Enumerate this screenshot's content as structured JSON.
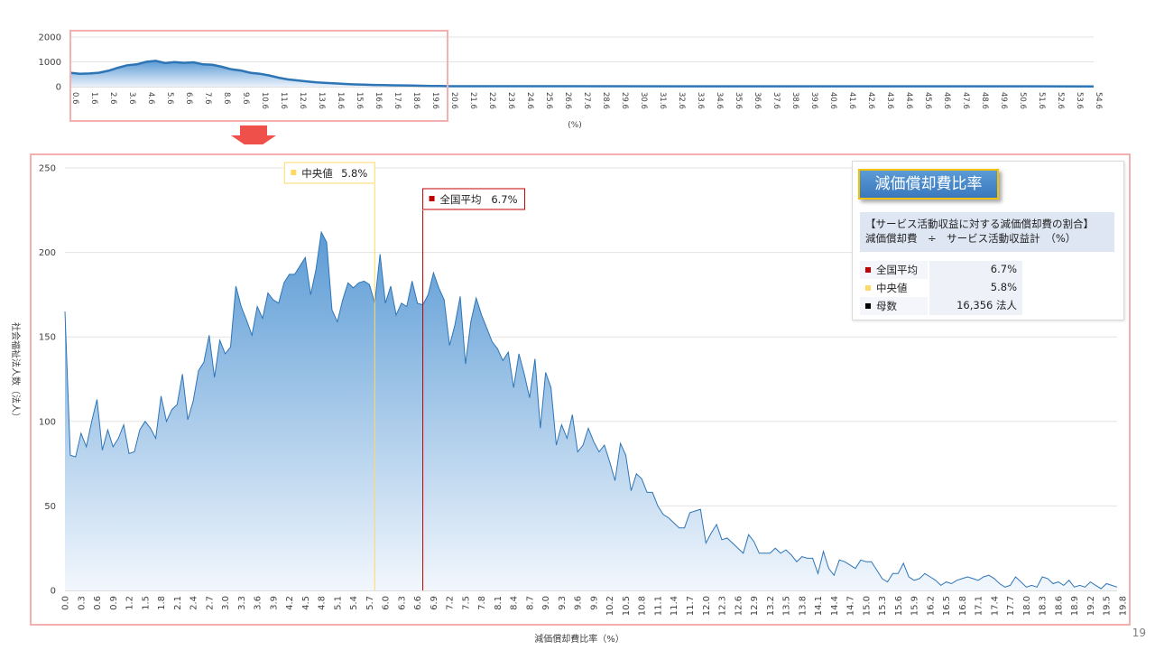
{
  "page_number": "19",
  "colors": {
    "area_top": "#5b9bd5",
    "line": "#2e75b6",
    "mean": "#c00000",
    "median": "#ffd966",
    "highlight_border": "#f4b0b0",
    "arrow": "#f0504a"
  },
  "info": {
    "title": "減価償却費比率",
    "desc_line1": "【サービス活動収益に対する減価償却費の割合】",
    "desc_line2": "減価償却費　÷　サービス活動収益計　（%）",
    "rows": [
      {
        "label": "全国平均",
        "value": "6.7%",
        "color": "#c00000"
      },
      {
        "label": "中央値",
        "value": "5.8%",
        "color": "#ffd966"
      },
      {
        "label": "母数",
        "value": "16,356 法人",
        "color": "#000000"
      }
    ]
  },
  "chart_data": [
    {
      "type": "area",
      "x_unit": "(%)",
      "ylim": [
        0,
        2000
      ],
      "y_ticks": [
        "0",
        "1000",
        "2000"
      ],
      "x_tick_labels": [
        "0.6",
        "1.6",
        "2.6",
        "3.6",
        "4.6",
        "5.6",
        "6.6",
        "7.6",
        "8.6",
        "9.6",
        "10.6",
        "11.6",
        "12.6",
        "13.6",
        "14.6",
        "15.6",
        "16.6",
        "17.6",
        "18.6",
        "19.6",
        "20.6",
        "21.6",
        "22.6",
        "23.6",
        "24.6",
        "25.6",
        "26.6",
        "27.6",
        "28.6",
        "29.6",
        "30.6",
        "31.6",
        "32.6",
        "33.6",
        "34.6",
        "35.6",
        "36.6",
        "37.6",
        "38.6",
        "39.6",
        "40.6",
        "41.6",
        "42.6",
        "43.6",
        "44.6",
        "45.6",
        "46.6",
        "47.6",
        "48.6",
        "49.6",
        "50.6",
        "51.6",
        "52.6",
        "53.6",
        "54.6"
      ],
      "x": [
        0.6,
        1.1,
        1.6,
        2.1,
        2.6,
        3.1,
        3.6,
        4.1,
        4.6,
        5.1,
        5.6,
        6.1,
        6.6,
        7.1,
        7.6,
        8.1,
        8.6,
        9.1,
        9.6,
        10.1,
        10.6,
        11.1,
        11.6,
        12.1,
        12.6,
        13.1,
        13.6,
        14.1,
        14.6,
        15.1,
        15.6,
        16.1,
        16.6,
        17.1,
        17.6,
        18.1,
        18.6,
        19.1,
        19.6,
        20.1,
        20.6,
        54.6
      ],
      "values": [
        560,
        520,
        530,
        560,
        640,
        760,
        860,
        900,
        1000,
        1040,
        950,
        990,
        960,
        980,
        900,
        880,
        800,
        700,
        650,
        560,
        520,
        450,
        360,
        290,
        250,
        210,
        170,
        150,
        130,
        110,
        90,
        80,
        70,
        60,
        55,
        50,
        45,
        38,
        30,
        25,
        20,
        10
      ]
    },
    {
      "type": "area",
      "ylabel": "社会福祉法人数（法人）",
      "xlabel": "減価償却費比率（%）",
      "ylim": [
        0,
        250
      ],
      "y_ticks": [
        "0",
        "50",
        "100",
        "150",
        "200",
        "250"
      ],
      "x_tick_labels": [
        "0.0",
        "0.3",
        "0.6",
        "0.9",
        "1.2",
        "1.5",
        "1.8",
        "2.1",
        "2.4",
        "2.7",
        "3.0",
        "3.3",
        "3.6",
        "3.9",
        "4.2",
        "4.5",
        "4.8",
        "5.1",
        "5.4",
        "5.7",
        "6.0",
        "6.3",
        "6.6",
        "6.9",
        "7.2",
        "7.5",
        "7.8",
        "8.1",
        "8.4",
        "8.7",
        "9.0",
        "9.3",
        "9.6",
        "9.9",
        "10.2",
        "10.5",
        "10.8",
        "11.1",
        "11.4",
        "11.7",
        "12.0",
        "12.3",
        "12.6",
        "12.9",
        "13.2",
        "13.5",
        "13.8",
        "14.1",
        "14.4",
        "14.7",
        "15.0",
        "15.3",
        "15.6",
        "15.9",
        "16.2",
        "16.5",
        "16.8",
        "17.1",
        "17.4",
        "17.7",
        "18.0",
        "18.3",
        "18.6",
        "18.9",
        "19.2",
        "19.5",
        "19.8"
      ],
      "x_start": 0.0,
      "x_step": 0.1,
      "values": [
        165,
        80,
        79,
        93,
        85,
        100,
        113,
        83,
        95,
        85,
        90,
        98,
        81,
        82,
        95,
        100,
        96,
        90,
        115,
        100,
        107,
        110,
        128,
        101,
        112,
        130,
        135,
        151,
        126,
        148,
        140,
        144,
        180,
        168,
        160,
        151,
        168,
        161,
        176,
        172,
        170,
        182,
        187,
        187,
        192,
        197,
        175,
        190,
        212,
        206,
        166,
        159,
        172,
        182,
        179,
        182,
        183,
        181,
        170,
        199,
        170,
        180,
        163,
        170,
        168,
        183,
        170,
        169,
        175,
        188,
        179,
        172,
        145,
        157,
        174,
        134,
        159,
        173,
        163,
        155,
        147,
        143,
        136,
        141,
        120,
        140,
        128,
        114,
        137,
        96,
        129,
        120,
        86,
        98,
        90,
        104,
        82,
        86,
        96,
        88,
        82,
        86,
        76,
        65,
        87,
        80,
        59,
        69,
        66,
        58,
        58,
        50,
        45,
        43,
        40,
        37,
        37,
        46,
        47,
        48,
        28,
        34,
        39,
        30,
        31,
        28,
        25,
        22,
        33,
        29,
        22,
        22,
        22,
        25,
        22,
        24,
        21,
        17,
        20,
        19,
        19,
        10,
        23,
        13,
        9,
        18,
        17,
        15,
        13,
        18,
        17,
        17,
        12,
        7,
        5,
        10,
        10,
        16,
        8,
        6,
        7,
        10,
        8,
        6,
        3,
        5,
        4,
        6,
        7,
        8,
        7,
        6,
        8,
        9,
        7,
        4,
        2,
        3,
        8,
        5,
        2,
        3,
        2,
        8,
        7,
        4,
        5,
        3,
        6,
        2,
        3,
        2,
        5,
        3,
        1,
        4,
        3,
        2
      ],
      "annotations": [
        {
          "label": "中央値",
          "value": "5.8%",
          "x": 5.8
        },
        {
          "label": "全国平均",
          "value": "6.7%",
          "x": 6.7
        }
      ]
    }
  ]
}
